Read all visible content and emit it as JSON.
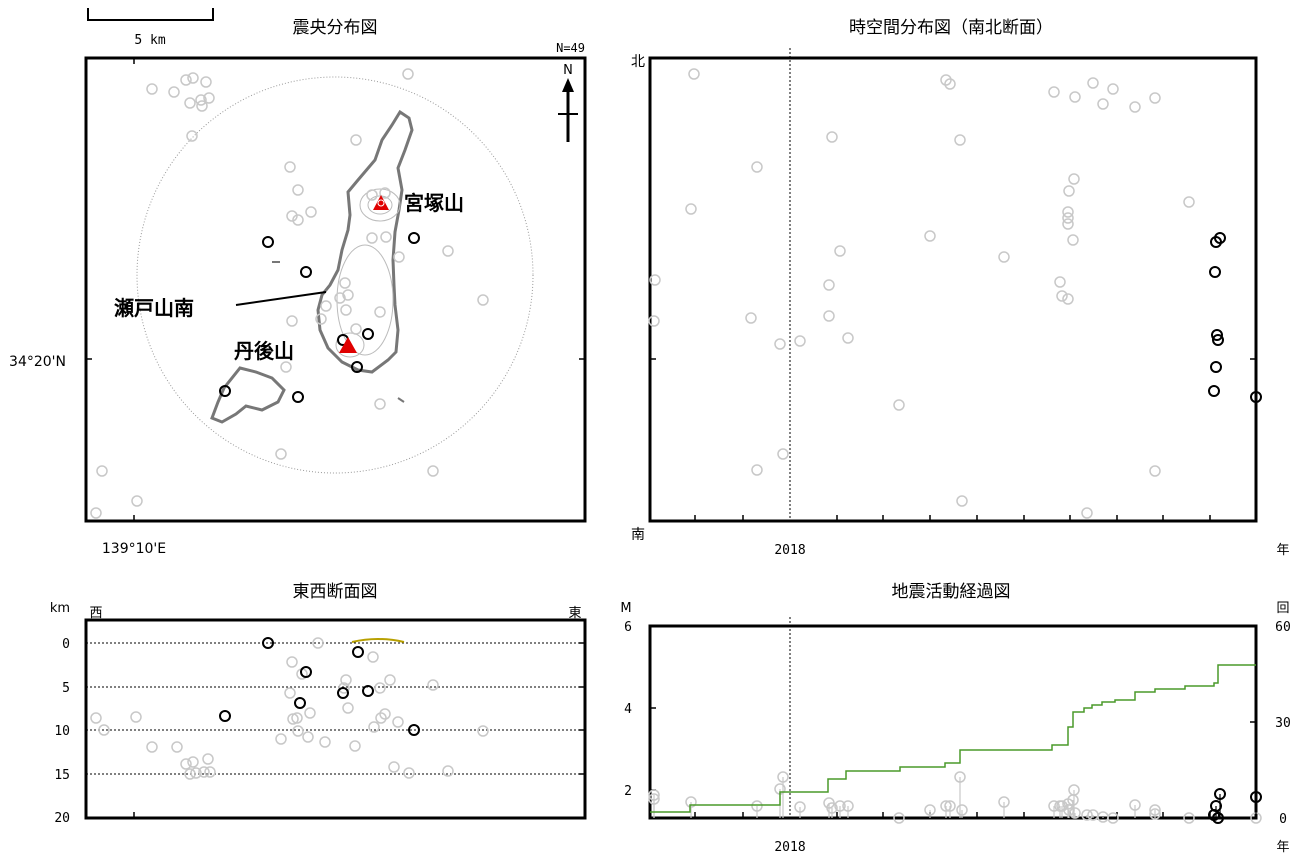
{
  "colors": {
    "event_old": "#c8c8c8",
    "event_new": "#000000",
    "volcano": "#e00000",
    "coastline": "#777777",
    "contour": "#bbbbbb",
    "cumulative_line": "#4a9a2a",
    "topography": "#b8a000"
  },
  "map": {
    "title": "震央分布図",
    "scale_label": "5 km",
    "count_label": "N=49",
    "north_label": "N",
    "lat_label": "34°20'N",
    "lon_label": "139°10'E",
    "volcano_labels": [
      "宮塚山",
      "瀬戸山南",
      "丹後山"
    ]
  },
  "spacetime": {
    "title": "時空間分布図（南北断面）",
    "north_label": "北",
    "south_label": "南",
    "x_tick_label": "2018",
    "x_unit": "年"
  },
  "ew_section": {
    "title": "東西断面図",
    "unit_label": "km",
    "west_label": "西",
    "east_label": "東",
    "depth_ticks": [
      "0",
      "5",
      "10",
      "15",
      "20"
    ]
  },
  "activity": {
    "title": "地震活動経過図",
    "left_unit": "M",
    "right_unit": "回",
    "left_ticks": [
      "6",
      "4",
      "2"
    ],
    "right_ticks": [
      "60",
      "30",
      "0"
    ],
    "x_tick_label": "2018",
    "x_unit": "年"
  },
  "chart_data": [
    {
      "type": "scatter",
      "title": "震央分布図",
      "note": "epicenter map, N=49",
      "series": [
        {
          "name": "old",
          "points_px_free": true
        }
      ]
    },
    {
      "type": "scatter",
      "title": "時空間分布図（南北断面）",
      "xlabel": "年",
      "x_ticks": [
        "2018"
      ]
    },
    {
      "type": "scatter",
      "title": "東西断面図",
      "ylabel": "km",
      "ylim": [
        0,
        20
      ],
      "y_ticks": [
        0,
        5,
        10,
        15,
        20
      ]
    },
    {
      "type": "line",
      "title": "地震活動経過図",
      "ylabel": "M",
      "ylim": [
        1.4,
        6
      ],
      "y2label": "回",
      "y2lim": [
        0,
        60
      ],
      "x_ticks": [
        "2018"
      ]
    }
  ]
}
